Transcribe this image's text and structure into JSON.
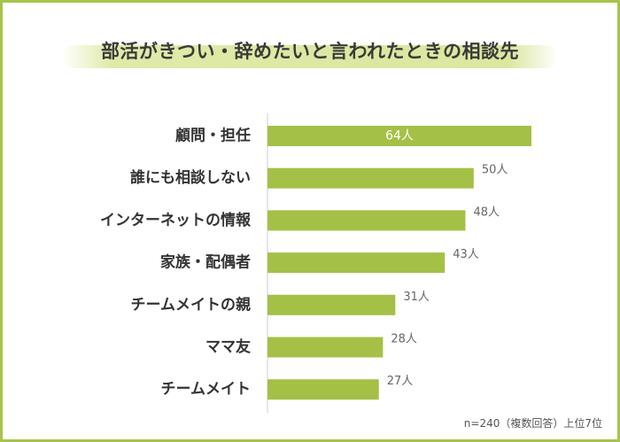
{
  "chart_data": {
    "type": "bar",
    "orientation": "horizontal",
    "title": "部活がきつい・辞めたいと言われたときの相談先",
    "categories": [
      "顧問・担任",
      "誰にも相談しない",
      "インターネットの情報",
      "家族・配偶者",
      "チームメイトの親",
      "ママ友",
      "チームメイト"
    ],
    "values": [
      64,
      50,
      48,
      43,
      31,
      28,
      27
    ],
    "value_labels": [
      "64人",
      "50人",
      "48人",
      "43人",
      "31人",
      "28人",
      "27人"
    ],
    "xlim": [
      0,
      64
    ],
    "grid": false,
    "legend": "none",
    "note": "n=240（複数回答）上位7位"
  },
  "colors": {
    "bar": "#a4c047",
    "frame": "#a7c44a",
    "title_band": "#dbe79f",
    "axis": "#cccccc"
  }
}
